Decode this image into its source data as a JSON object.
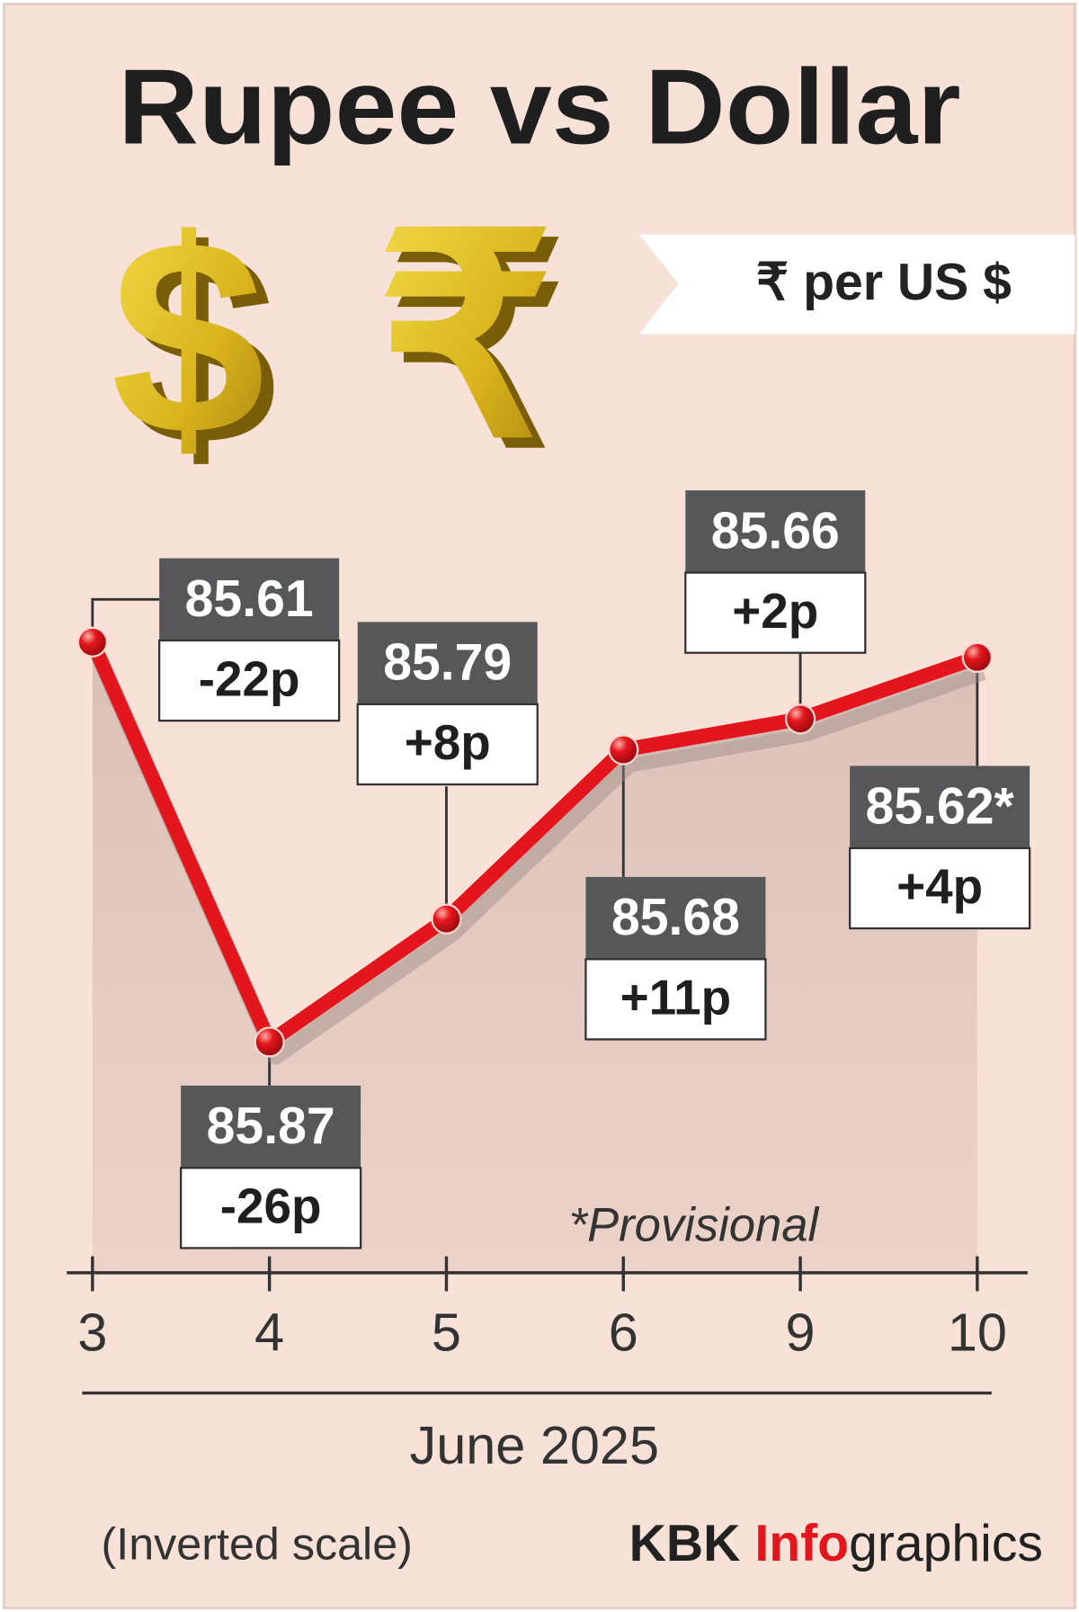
{
  "chart_data": {
    "type": "line",
    "title": "Rupee vs Dollar",
    "icons": [
      "$",
      "₹"
    ],
    "unit": "₹ per US $",
    "categories": [
      "3",
      "4",
      "5",
      "6",
      "9",
      "10"
    ],
    "values": [
      85.61,
      85.87,
      85.79,
      85.68,
      85.66,
      85.62
    ],
    "value_labels": [
      "85.61",
      "85.87",
      "85.79",
      "85.68",
      "85.66",
      "85.62*"
    ],
    "changes": [
      "-22p",
      "-26p",
      "+8p",
      "+11p",
      "+2p",
      "+4p"
    ],
    "xlabel": "June 2025",
    "note": "*Provisional",
    "scale_note": "(Inverted scale)",
    "credit": [
      "KBK",
      "Info",
      "graphics"
    ],
    "ylim": [
      86.02,
      85.5
    ],
    "color": "#e3161d"
  }
}
